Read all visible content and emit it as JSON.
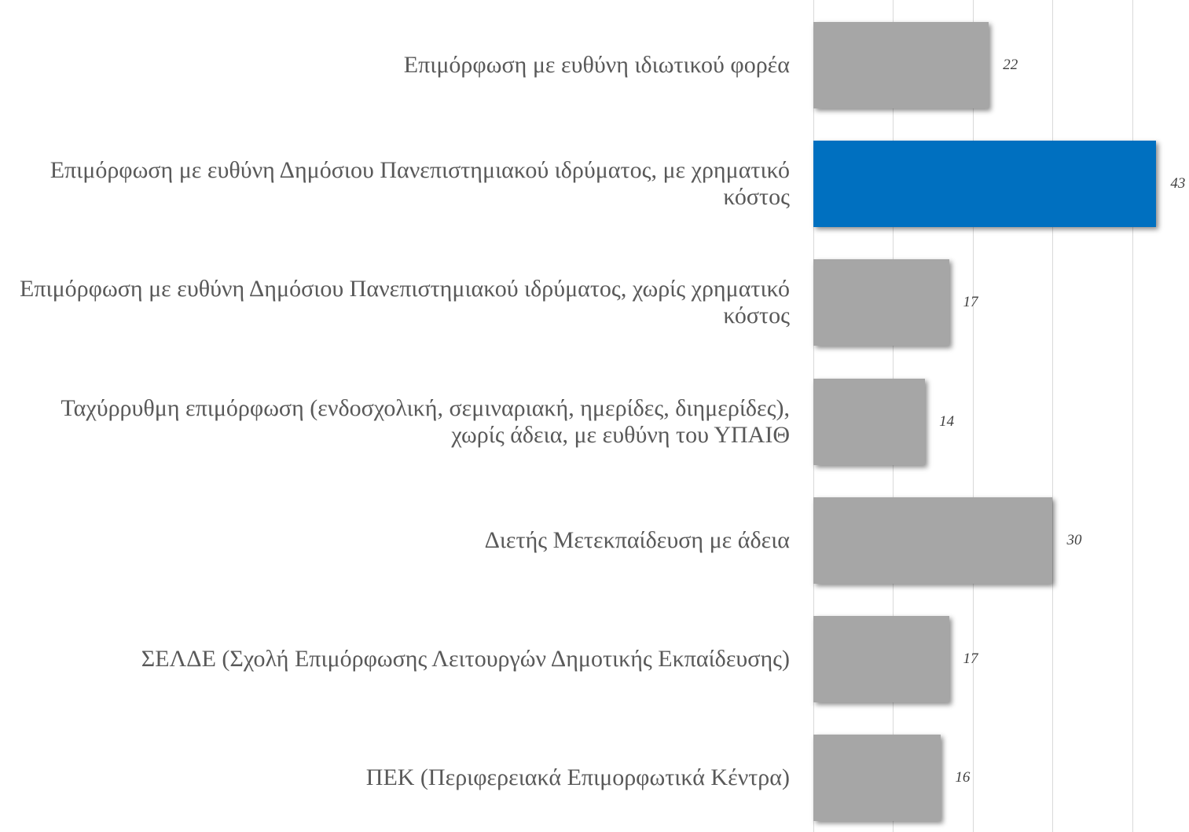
{
  "chart_data": {
    "type": "bar",
    "orientation": "horizontal",
    "categories": [
      "Επιμόρφωση με ευθύνη ιδιωτικού φορέα",
      "Επιμόρφωση με ευθύνη Δημόσιου Πανεπιστημιακού ιδρύματος, με χρηματικό κόστος",
      "Επιμόρφωση με ευθύνη Δημόσιου Πανεπιστημιακού ιδρύματος, χωρίς χρηματικό κόστος",
      "Ταχύρρυθμη επιμόρφωση (ενδοσχολική, σεμιναριακή, ημερίδες, διημερίδες), χωρίς άδεια, με ευθύνη του ΥΠΑΙΘ",
      "Διετής Μετεκπαίδευση με άδεια",
      "ΣΕΛΔΕ (Σχολή Επιμόρφωσης Λειτουργών Δημοτικής Εκπαίδευσης)",
      "ΠΕΚ (Περιφερειακά Επιμορφωτικά Κέντρα)"
    ],
    "values": [
      22,
      43,
      17,
      14,
      30,
      17,
      16
    ],
    "colors": [
      "#a6a6a6",
      "#0070c0",
      "#a6a6a6",
      "#a6a6a6",
      "#a6a6a6",
      "#a6a6a6",
      "#a6a6a6"
    ],
    "xlim": [
      0,
      47
    ],
    "xticks": [
      0,
      10,
      20,
      30,
      40
    ],
    "grid": true
  }
}
